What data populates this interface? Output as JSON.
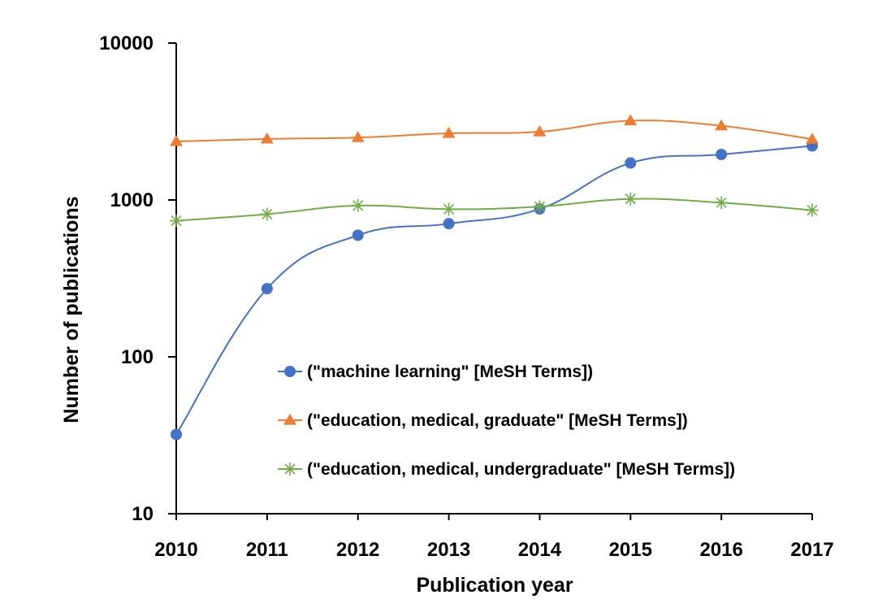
{
  "chart_data": {
    "type": "line",
    "title": "",
    "xlabel": "Publication year",
    "ylabel": "Number of publications",
    "y_scale": "log",
    "ylim": [
      10,
      10000
    ],
    "y_ticks": [
      "10",
      "100",
      "1000",
      "10000"
    ],
    "x": [
      "2010",
      "2011",
      "2012",
      "2013",
      "2014",
      "2015",
      "2016",
      "2017"
    ],
    "grid": false,
    "legend_position": "center-right",
    "series": [
      {
        "name": "(\"machine learning\" [MeSH Terms])",
        "marker": "circle",
        "color": "#4472C4",
        "values": [
          32,
          272,
          596,
          706,
          876,
          1720,
          1950,
          2210
        ]
      },
      {
        "name": "(\"education, medical, graduate\" [MeSH Terms])",
        "marker": "triangle",
        "color": "#ED7D31",
        "values": [
          2360,
          2450,
          2500,
          2660,
          2720,
          3200,
          2970,
          2440
        ]
      },
      {
        "name": "(\"education, medical, undergraduate\" [MeSH Terms])",
        "marker": "star",
        "color": "#70AD47",
        "values": [
          737,
          812,
          921,
          873,
          907,
          1015,
          961,
          860
        ]
      }
    ]
  }
}
